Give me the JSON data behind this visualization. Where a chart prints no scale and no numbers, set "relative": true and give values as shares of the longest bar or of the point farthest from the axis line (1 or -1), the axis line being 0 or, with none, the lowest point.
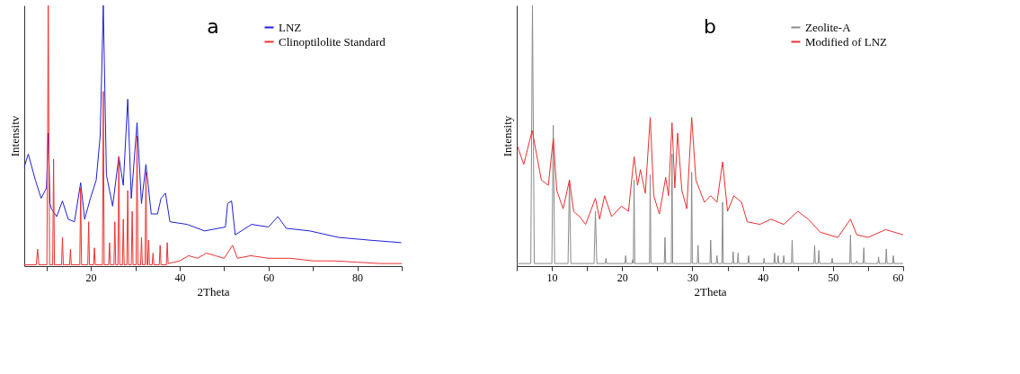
{
  "chart_data": [
    {
      "type": "line",
      "title": "a",
      "xlabel": "2Theta",
      "ylabel": "Intensitv",
      "relative": true,
      "xlim": [
        5,
        90
      ],
      "xticks": [
        {
          "value": 10,
          "label": null
        },
        20,
        {
          "value": 30,
          "label": null
        },
        40,
        {
          "value": 50,
          "label": null
        },
        60,
        {
          "value": 70,
          "label": null
        },
        80,
        {
          "value": 90,
          "label": null
        }
      ],
      "legend": "top right",
      "grid": false,
      "series": [
        {
          "name": "LNZ",
          "color": "#1f1fd6",
          "x": [
            5.0,
            5.9,
            7.5,
            8.8,
            10.0,
            10.4,
            10.8,
            11.1,
            12.3,
            13.6,
            14.9,
            16.3,
            17.7,
            18.6,
            19.9,
            21.2,
            22.1,
            22.8,
            23.5,
            24.9,
            26.3,
            27.3,
            28.3,
            29.1,
            30.4,
            31.4,
            32.4,
            33.6,
            35.0,
            35.8,
            36.8,
            37.8,
            41.7,
            45.6,
            50.3,
            50.8,
            51.7,
            52.5,
            56.2,
            60.0,
            62.1,
            64.0,
            69.3,
            75.8,
            82.5,
            89.9
          ],
          "values": [
            0.38,
            0.43,
            0.33,
            0.26,
            0.3,
            0.51,
            0.24,
            0.22,
            0.19,
            0.25,
            0.18,
            0.17,
            0.32,
            0.18,
            0.26,
            0.33,
            0.5,
            1.0,
            0.35,
            0.23,
            0.42,
            0.31,
            0.64,
            0.26,
            0.55,
            0.24,
            0.39,
            0.2,
            0.2,
            0.26,
            0.28,
            0.17,
            0.16,
            0.135,
            0.15,
            0.24,
            0.25,
            0.12,
            0.16,
            0.15,
            0.19,
            0.145,
            0.135,
            0.11,
            0.1,
            0.09
          ]
        },
        {
          "name": "Clinoptilolite Standard",
          "color": "#ee3030",
          "x": [
            5.0,
            7.7,
            8.0,
            8.3,
            10.1,
            10.4,
            10.7,
            11.4,
            11.6,
            11.8,
            13.4,
            13.6,
            13.8,
            15.2,
            15.4,
            15.6,
            17.5,
            17.7,
            17.9,
            19.3,
            19.5,
            19.7,
            20.6,
            20.8,
            21.0,
            22.6,
            22.8,
            23.0,
            24.0,
            24.2,
            24.4,
            25.2,
            25.4,
            25.6,
            26.1,
            26.3,
            26.5,
            27.1,
            27.3,
            27.5,
            28.1,
            28.3,
            28.5,
            29.1,
            29.3,
            29.5,
            30.2,
            30.4,
            30.6,
            31.2,
            31.4,
            31.6,
            32.2,
            32.4,
            32.6,
            32.8,
            33.0,
            33.2,
            33.8,
            34.0,
            34.2,
            35.4,
            35.6,
            35.8,
            37.0,
            37.2,
            37.4,
            40.0,
            42.0,
            44.0,
            46.0,
            48.0,
            50.0,
            51.9,
            53.0,
            56.0,
            60.0,
            65.0,
            70.0,
            75.0,
            80.0,
            85.0,
            90.0
          ],
          "values": [
            0.005,
            0.005,
            0.065,
            0.005,
            0.005,
            1.0,
            0.005,
            0.005,
            0.41,
            0.005,
            0.005,
            0.11,
            0.005,
            0.005,
            0.065,
            0.005,
            0.005,
            0.3,
            0.005,
            0.005,
            0.17,
            0.005,
            0.005,
            0.07,
            0.005,
            0.005,
            0.67,
            0.005,
            0.005,
            0.09,
            0.005,
            0.005,
            0.17,
            0.005,
            0.005,
            0.42,
            0.005,
            0.005,
            0.18,
            0.005,
            0.005,
            0.29,
            0.005,
            0.005,
            0.21,
            0.005,
            0.005,
            0.5,
            0.005,
            0.005,
            0.11,
            0.005,
            0.005,
            0.36,
            0.005,
            0.005,
            0.1,
            0.005,
            0.005,
            0.05,
            0.005,
            0.005,
            0.08,
            0.005,
            0.005,
            0.09,
            0.01,
            0.02,
            0.04,
            0.03,
            0.05,
            0.04,
            0.03,
            0.08,
            0.03,
            0.04,
            0.03,
            0.03,
            0.02,
            0.02,
            0.015,
            0.01,
            0.01
          ]
        }
      ]
    },
    {
      "type": "line",
      "title": "b",
      "xlabel": "2Theta",
      "ylabel": "Intensity",
      "relative": true,
      "xlim": [
        5,
        60
      ],
      "xticks": [
        {
          "value": 5,
          "label": null
        },
        10,
        {
          "value": 15,
          "label": null
        },
        20,
        {
          "value": 25,
          "label": null
        },
        30,
        {
          "value": 35,
          "label": null
        },
        40,
        {
          "value": 45,
          "label": null
        },
        50,
        {
          "value": 55,
          "label": null
        },
        60
      ],
      "legend": "top right",
      "grid": false,
      "series": [
        {
          "name": "Zeolite-A",
          "color": "#8a8a8a",
          "x": [
            5.0,
            7.0,
            7.24,
            7.5,
            10.0,
            10.2,
            10.4,
            12.3,
            12.5,
            12.7,
            16.0,
            16.2,
            16.4,
            17.6,
            17.7,
            17.8,
            20.4,
            20.5,
            20.6,
            21.4,
            21.5,
            21.6,
            21.7,
            21.8,
            23.9,
            24.0,
            24.1,
            26.0,
            26.1,
            26.2,
            27.0,
            27.1,
            27.2,
            29.8,
            29.9,
            30.0,
            30.7,
            30.8,
            30.9,
            32.5,
            32.6,
            32.7,
            33.4,
            33.5,
            33.6,
            34.2,
            34.3,
            34.4,
            35.7,
            35.8,
            35.9,
            36.4,
            36.5,
            36.6,
            37.9,
            38.0,
            38.1,
            40.1,
            40.2,
            40.3,
            41.6,
            41.7,
            41.8,
            42.1,
            42.2,
            42.3,
            42.9,
            43.0,
            43.1,
            44.1,
            44.2,
            44.3,
            47.3,
            47.4,
            47.5,
            47.9,
            48.0,
            48.1,
            49.8,
            49.9,
            50.0,
            52.4,
            52.5,
            52.6,
            53.3,
            53.4,
            53.5,
            54.3,
            54.4,
            54.5,
            56.4,
            56.5,
            56.6,
            57.5,
            57.6,
            57.7,
            58.5,
            58.6,
            58.7,
            60.0
          ],
          "values": [
            0.01,
            0.01,
            1.0,
            0.01,
            0.01,
            0.54,
            0.01,
            0.01,
            0.33,
            0.01,
            0.01,
            0.21,
            0.01,
            0.01,
            0.03,
            0.01,
            0.01,
            0.04,
            0.01,
            0.01,
            0.025,
            0.01,
            0.33,
            0.01,
            0.01,
            0.35,
            0.01,
            0.01,
            0.11,
            0.01,
            0.01,
            0.43,
            0.01,
            0.01,
            0.36,
            0.01,
            0.01,
            0.08,
            0.01,
            0.01,
            0.1,
            0.01,
            0.01,
            0.04,
            0.01,
            0.01,
            0.245,
            0.01,
            0.01,
            0.055,
            0.01,
            0.01,
            0.05,
            0.01,
            0.01,
            0.04,
            0.01,
            0.01,
            0.03,
            0.01,
            0.01,
            0.05,
            0.01,
            0.01,
            0.04,
            0.01,
            0.01,
            0.04,
            0.01,
            0.01,
            0.1,
            0.01,
            0.01,
            0.08,
            0.01,
            0.01,
            0.06,
            0.01,
            0.01,
            0.03,
            0.01,
            0.01,
            0.12,
            0.01,
            0.01,
            0.02,
            0.01,
            0.01,
            0.07,
            0.01,
            0.01,
            0.035,
            0.01,
            0.01,
            0.066,
            0.01,
            0.01,
            0.04,
            0.01,
            0.01
          ]
        },
        {
          "name": "Modified of LNZ",
          "color": "#e83030",
          "x": [
            5.1,
            6.0,
            7.2,
            8.5,
            9.5,
            10.2,
            10.7,
            11.6,
            12.5,
            13.1,
            13.95,
            14.8,
            16.2,
            16.8,
            17.5,
            18.5,
            19.9,
            20.9,
            21.7,
            22.2,
            22.6,
            23.3,
            24.0,
            24.5,
            25.3,
            26.2,
            26.6,
            27.1,
            27.5,
            27.9,
            28.5,
            29.2,
            29.9,
            30.5,
            31.7,
            32.6,
            33.5,
            34.3,
            35.0,
            35.9,
            37.0,
            37.8,
            39.6,
            41.2,
            43.0,
            45.0,
            46.5,
            48.2,
            50.7,
            52.5,
            53.4,
            55.0,
            57.5,
            60.0
          ],
          "values": [
            0.46,
            0.39,
            0.52,
            0.33,
            0.31,
            0.49,
            0.29,
            0.22,
            0.33,
            0.21,
            0.19,
            0.16,
            0.26,
            0.18,
            0.27,
            0.19,
            0.23,
            0.21,
            0.42,
            0.31,
            0.37,
            0.28,
            0.57,
            0.27,
            0.2,
            0.34,
            0.27,
            0.55,
            0.3,
            0.51,
            0.29,
            0.22,
            0.57,
            0.33,
            0.245,
            0.27,
            0.245,
            0.4,
            0.21,
            0.27,
            0.245,
            0.17,
            0.16,
            0.18,
            0.16,
            0.21,
            0.18,
            0.13,
            0.11,
            0.18,
            0.12,
            0.11,
            0.14,
            0.12
          ]
        }
      ]
    }
  ]
}
